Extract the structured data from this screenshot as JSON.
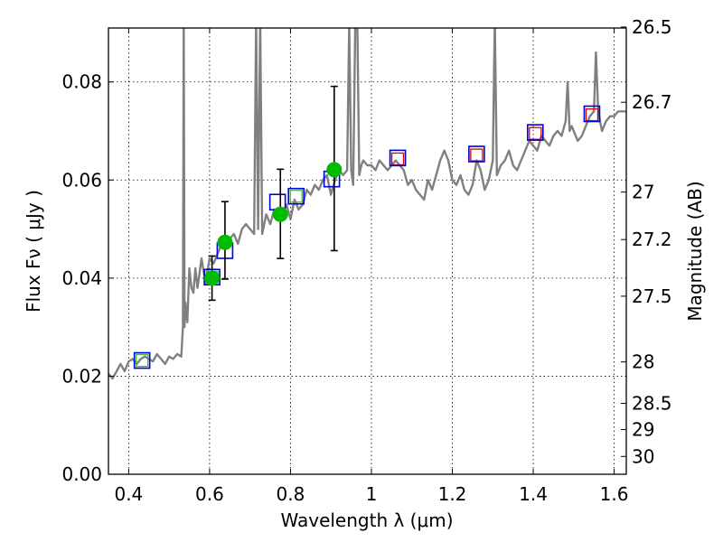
{
  "chart_data": {
    "type": "scatter",
    "title": "",
    "xlabel": "Wavelength  λ (μm)",
    "ylabel": "Flux  Fν  ( μJy )",
    "ylabel_right": "Magnitude (AB)",
    "xlim": [
      0.35,
      1.63
    ],
    "ylim": [
      0.0,
      0.091
    ],
    "grid": true,
    "x_ticks": [
      0.4,
      0.6,
      0.8,
      1.0,
      1.2,
      1.4,
      1.6
    ],
    "x_tick_labels": [
      "0.4",
      "0.6",
      "0.8",
      "1",
      "1.2",
      "1.4",
      "1.6"
    ],
    "y_ticks": [
      0.0,
      0.02,
      0.04,
      0.06,
      0.08
    ],
    "y_tick_labels": [
      "0.00",
      "0.02",
      "0.04",
      "0.06",
      "0.08"
    ],
    "right_tick_labels": [
      "26.5",
      "26.7",
      "27",
      "27.2",
      "27.5",
      "28",
      "28.5",
      "29",
      "30"
    ],
    "colors": {
      "model": "#808080",
      "observed": "#00bb00",
      "model_band_blue": "#0000dd",
      "model_band_red": "#dd0000",
      "model_band_green": "#44bb44",
      "errorbar": "#000000"
    },
    "series": [
      {
        "type": "line",
        "x": [
          0.35,
          0.36,
          0.37,
          0.38,
          0.39,
          0.4,
          0.41,
          0.42,
          0.43,
          0.44,
          0.45,
          0.46,
          0.47,
          0.48,
          0.49,
          0.5,
          0.51,
          0.52,
          0.53,
          0.534,
          0.536,
          0.538,
          0.54,
          0.545,
          0.55,
          0.555,
          0.56,
          0.565,
          0.57,
          0.58,
          0.59,
          0.6,
          0.61,
          0.62,
          0.63,
          0.64,
          0.65,
          0.66,
          0.67,
          0.68,
          0.69,
          0.7,
          0.71,
          0.715,
          0.72,
          0.725,
          0.73,
          0.74,
          0.75,
          0.76,
          0.77,
          0.78,
          0.79,
          0.8,
          0.81,
          0.82,
          0.83,
          0.84,
          0.85,
          0.86,
          0.87,
          0.88,
          0.89,
          0.9,
          0.91,
          0.92,
          0.93,
          0.94,
          0.945,
          0.95,
          0.955,
          0.96,
          0.965,
          0.97,
          0.975,
          0.98,
          0.99,
          1.0,
          1.01,
          1.02,
          1.03,
          1.04,
          1.05,
          1.06,
          1.07,
          1.08,
          1.09,
          1.1,
          1.11,
          1.12,
          1.13,
          1.14,
          1.15,
          1.16,
          1.17,
          1.18,
          1.19,
          1.2,
          1.21,
          1.22,
          1.23,
          1.24,
          1.25,
          1.26,
          1.27,
          1.28,
          1.29,
          1.3,
          1.305,
          1.31,
          1.315,
          1.32,
          1.33,
          1.34,
          1.35,
          1.36,
          1.37,
          1.38,
          1.39,
          1.4,
          1.41,
          1.42,
          1.43,
          1.44,
          1.45,
          1.46,
          1.47,
          1.48,
          1.485,
          1.49,
          1.495,
          1.5,
          1.51,
          1.52,
          1.53,
          1.54,
          1.55,
          1.555,
          1.56,
          1.565,
          1.57,
          1.58,
          1.59,
          1.6,
          1.61,
          1.62,
          1.63
        ],
        "y": [
          0.0205,
          0.0195,
          0.021,
          0.0225,
          0.021,
          0.023,
          0.0235,
          0.0225,
          0.0235,
          0.024,
          0.0235,
          0.023,
          0.0245,
          0.0235,
          0.0225,
          0.024,
          0.0235,
          0.0245,
          0.024,
          0.03,
          0.093,
          0.03,
          0.035,
          0.031,
          0.042,
          0.038,
          0.037,
          0.042,
          0.038,
          0.044,
          0.039,
          0.044,
          0.043,
          0.045,
          0.047,
          0.046,
          0.048,
          0.049,
          0.047,
          0.05,
          0.051,
          0.05,
          0.049,
          0.093,
          0.05,
          0.093,
          0.049,
          0.053,
          0.051,
          0.054,
          0.052,
          0.053,
          0.055,
          0.052,
          0.056,
          0.054,
          0.055,
          0.058,
          0.057,
          0.059,
          0.058,
          0.06,
          0.061,
          0.057,
          0.06,
          0.062,
          0.061,
          0.062,
          0.092,
          0.062,
          0.059,
          0.092,
          0.093,
          0.061,
          0.063,
          0.064,
          0.063,
          0.063,
          0.062,
          0.064,
          0.063,
          0.062,
          0.063,
          0.064,
          0.063,
          0.062,
          0.059,
          0.06,
          0.058,
          0.057,
          0.056,
          0.06,
          0.058,
          0.061,
          0.064,
          0.066,
          0.064,
          0.06,
          0.059,
          0.061,
          0.058,
          0.057,
          0.059,
          0.064,
          0.062,
          0.058,
          0.06,
          0.064,
          0.093,
          0.061,
          0.062,
          0.063,
          0.064,
          0.066,
          0.063,
          0.062,
          0.064,
          0.066,
          0.068,
          0.067,
          0.066,
          0.069,
          0.068,
          0.067,
          0.069,
          0.07,
          0.069,
          0.072,
          0.08,
          0.07,
          0.071,
          0.07,
          0.068,
          0.069,
          0.071,
          0.073,
          0.074,
          0.086,
          0.075,
          0.072,
          0.07,
          0.072,
          0.073,
          0.073,
          0.074,
          0.074,
          0.074
        ]
      },
      {
        "type": "scatter",
        "x": [
          0.606,
          0.638,
          0.775,
          0.908
        ],
        "y": [
          0.04,
          0.0473,
          0.053,
          0.0621
        ],
        "yerr_low": [
          0.0045,
          0.0075,
          0.009,
          0.0165
        ],
        "yerr_high": [
          0.0045,
          0.0083,
          0.0092,
          0.017
        ]
      },
      {
        "type": "scatter",
        "x": [
          0.433,
          0.606,
          0.638,
          0.768,
          0.814,
          0.902,
          1.065,
          1.26,
          1.405,
          1.545
        ],
        "y": [
          0.0232,
          0.0402,
          0.0456,
          0.0555,
          0.0567,
          0.0602,
          0.0645,
          0.0653,
          0.0697,
          0.0735
        ]
      },
      {
        "type": "scatter",
        "x": [
          0.433,
          0.606,
          0.814,
          1.065,
          1.26,
          1.405,
          1.545
        ],
        "y": [
          0.0232,
          0.0402,
          0.0567,
          0.0643,
          0.0651,
          0.0695,
          0.0733
        ]
      }
    ]
  }
}
